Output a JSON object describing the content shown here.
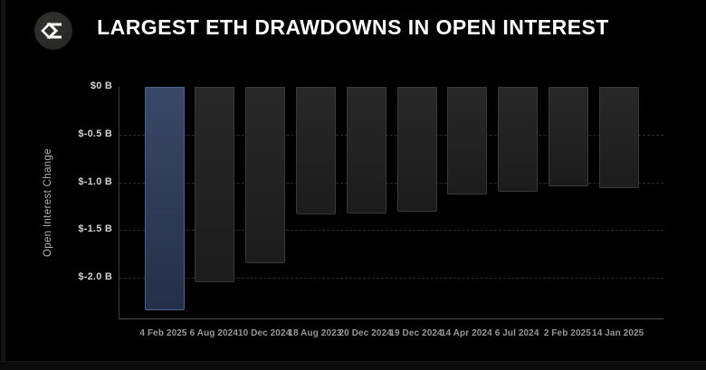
{
  "header": {
    "title": "LARGEST ETH DRAWDOWNS IN OPEN INTEREST",
    "logo_icon": "sigma-diamond-icon"
  },
  "chart_data": {
    "type": "bar",
    "title": "LARGEST ETH DRAWDOWNS IN OPEN INTEREST",
    "ylabel": "Open Interest Change",
    "xlabel": "",
    "unit": "billions USD",
    "categories": [
      "4 Feb 2025",
      "6 Aug 2024",
      "10 Dec 2024",
      "18 Aug 2023",
      "20 Dec 2024",
      "19 Dec 2024",
      "14 Apr 2024",
      "6 Jul 2024",
      "2 Feb 2025",
      "14 Jan 2025"
    ],
    "values": [
      -2.34,
      -2.05,
      -1.85,
      -1.34,
      -1.33,
      -1.31,
      -1.13,
      -1.1,
      -1.04,
      -1.06
    ],
    "highlight_index": 0,
    "ylim": [
      -2.43,
      0
    ],
    "yticks": {
      "values": [
        0,
        -0.5,
        -1.0,
        -1.5,
        -2.0
      ],
      "labels": [
        "$0 B",
        "$-0.5 B",
        "$-1.0 B",
        "$-1.5 B",
        "$-2.0 B"
      ]
    },
    "grid": "horizontal-dashed",
    "legend": null,
    "colors": {
      "background": "#000000",
      "bar_default": "#222222",
      "bar_default_border": "#383838",
      "bar_highlight": "#31405f",
      "bar_highlight_border": "#4e608a",
      "grid_line": "#2a2a2a",
      "axis_line": "#3c3c3c",
      "ytick_text": "#d2d2d2",
      "xtick_text": "#979797",
      "ylabel_text": "#b3b3b3",
      "title_text": "#ffffff"
    }
  }
}
